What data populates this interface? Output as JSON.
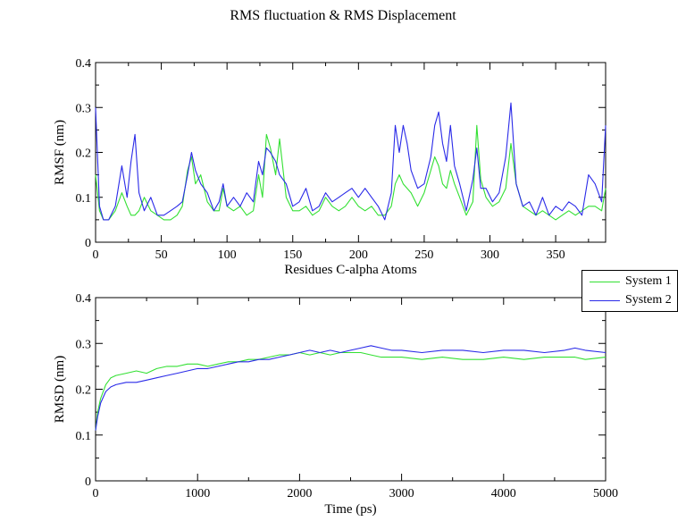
{
  "title": "RMS fluctuation & RMS Displacement",
  "colors": {
    "system1": "#33e033",
    "system2": "#2a2ae8"
  },
  "legend": [
    {
      "label": "System 1",
      "color": "#33e033"
    },
    {
      "label": "System 2",
      "color": "#2a2ae8"
    }
  ],
  "chart_data": [
    {
      "type": "line",
      "xlabel": "Residues C-alpha Atoms",
      "ylabel": "RMSF (nm)",
      "xlim": [
        0,
        388
      ],
      "ylim": [
        0,
        0.4
      ],
      "xticks": [
        0,
        50,
        100,
        150,
        200,
        250,
        300,
        350
      ],
      "yticks": [
        0,
        0.1,
        0.2,
        0.3,
        0.4
      ],
      "x": [
        0,
        3,
        6,
        10,
        15,
        20,
        24,
        27,
        30,
        33,
        37,
        42,
        47,
        52,
        57,
        62,
        66,
        70,
        73,
        76,
        80,
        85,
        90,
        94,
        97,
        100,
        105,
        110,
        115,
        120,
        124,
        127,
        130,
        133,
        137,
        140,
        145,
        150,
        155,
        160,
        165,
        170,
        175,
        180,
        185,
        190,
        195,
        200,
        205,
        210,
        215,
        220,
        225,
        228,
        231,
        234,
        237,
        240,
        245,
        250,
        255,
        258,
        261,
        264,
        267,
        270,
        273,
        277,
        282,
        287,
        290,
        293,
        297,
        302,
        307,
        312,
        316,
        320,
        325,
        330,
        335,
        340,
        345,
        350,
        355,
        360,
        365,
        370,
        375,
        380,
        385,
        388
      ],
      "series": [
        {
          "name": "System 1",
          "values": [
            0.15,
            0.07,
            0.05,
            0.05,
            0.07,
            0.11,
            0.08,
            0.06,
            0.06,
            0.07,
            0.1,
            0.07,
            0.06,
            0.05,
            0.05,
            0.06,
            0.08,
            0.16,
            0.19,
            0.13,
            0.15,
            0.09,
            0.07,
            0.07,
            0.12,
            0.08,
            0.07,
            0.08,
            0.06,
            0.07,
            0.15,
            0.1,
            0.24,
            0.21,
            0.15,
            0.23,
            0.1,
            0.07,
            0.07,
            0.08,
            0.06,
            0.07,
            0.1,
            0.08,
            0.07,
            0.08,
            0.1,
            0.08,
            0.07,
            0.08,
            0.06,
            0.06,
            0.08,
            0.13,
            0.15,
            0.13,
            0.12,
            0.11,
            0.08,
            0.11,
            0.16,
            0.19,
            0.17,
            0.13,
            0.12,
            0.16,
            0.13,
            0.1,
            0.06,
            0.09,
            0.26,
            0.14,
            0.1,
            0.08,
            0.09,
            0.12,
            0.22,
            0.13,
            0.08,
            0.07,
            0.06,
            0.07,
            0.06,
            0.05,
            0.06,
            0.07,
            0.06,
            0.07,
            0.08,
            0.08,
            0.07,
            0.12
          ]
        },
        {
          "name": "System 2",
          "values": [
            0.3,
            0.08,
            0.05,
            0.05,
            0.08,
            0.17,
            0.1,
            0.18,
            0.24,
            0.11,
            0.07,
            0.1,
            0.06,
            0.06,
            0.07,
            0.08,
            0.09,
            0.15,
            0.2,
            0.16,
            0.13,
            0.11,
            0.07,
            0.09,
            0.13,
            0.08,
            0.1,
            0.08,
            0.11,
            0.09,
            0.18,
            0.15,
            0.21,
            0.2,
            0.18,
            0.15,
            0.13,
            0.08,
            0.09,
            0.12,
            0.07,
            0.08,
            0.11,
            0.09,
            0.1,
            0.11,
            0.12,
            0.1,
            0.12,
            0.1,
            0.08,
            0.05,
            0.11,
            0.26,
            0.2,
            0.26,
            0.22,
            0.16,
            0.12,
            0.13,
            0.19,
            0.26,
            0.29,
            0.22,
            0.18,
            0.26,
            0.17,
            0.13,
            0.07,
            0.14,
            0.21,
            0.12,
            0.12,
            0.09,
            0.11,
            0.19,
            0.31,
            0.13,
            0.08,
            0.09,
            0.06,
            0.1,
            0.06,
            0.08,
            0.07,
            0.09,
            0.08,
            0.06,
            0.15,
            0.13,
            0.09,
            0.26
          ]
        }
      ]
    },
    {
      "type": "line",
      "xlabel": "Time (ps)",
      "ylabel": "RMSD (nm)",
      "xlim": [
        0,
        5000
      ],
      "ylim": [
        0,
        0.4
      ],
      "xticks": [
        0,
        1000,
        2000,
        3000,
        4000,
        5000
      ],
      "yticks": [
        0,
        0.1,
        0.2,
        0.3,
        0.4
      ],
      "x": [
        0,
        20,
        50,
        100,
        150,
        200,
        300,
        400,
        500,
        600,
        700,
        800,
        900,
        1000,
        1100,
        1200,
        1300,
        1400,
        1500,
        1600,
        1700,
        1800,
        1900,
        2000,
        2100,
        2200,
        2300,
        2400,
        2500,
        2600,
        2700,
        2800,
        2900,
        3000,
        3200,
        3400,
        3600,
        3800,
        4000,
        4200,
        4400,
        4600,
        4700,
        4800,
        5000
      ],
      "series": [
        {
          "name": "System 1",
          "values": [
            0.11,
            0.15,
            0.18,
            0.21,
            0.225,
            0.23,
            0.235,
            0.24,
            0.235,
            0.245,
            0.25,
            0.25,
            0.255,
            0.255,
            0.25,
            0.255,
            0.26,
            0.26,
            0.265,
            0.265,
            0.27,
            0.275,
            0.275,
            0.28,
            0.275,
            0.28,
            0.275,
            0.28,
            0.28,
            0.28,
            0.275,
            0.27,
            0.27,
            0.27,
            0.265,
            0.27,
            0.265,
            0.265,
            0.27,
            0.265,
            0.27,
            0.27,
            0.27,
            0.265,
            0.27
          ]
        },
        {
          "name": "System 2",
          "values": [
            0.11,
            0.14,
            0.17,
            0.195,
            0.205,
            0.21,
            0.215,
            0.215,
            0.22,
            0.225,
            0.23,
            0.235,
            0.24,
            0.245,
            0.245,
            0.25,
            0.255,
            0.26,
            0.26,
            0.265,
            0.265,
            0.27,
            0.275,
            0.28,
            0.285,
            0.28,
            0.285,
            0.28,
            0.285,
            0.29,
            0.295,
            0.29,
            0.285,
            0.285,
            0.28,
            0.285,
            0.285,
            0.28,
            0.285,
            0.285,
            0.28,
            0.285,
            0.29,
            0.285,
            0.28
          ]
        }
      ]
    }
  ]
}
